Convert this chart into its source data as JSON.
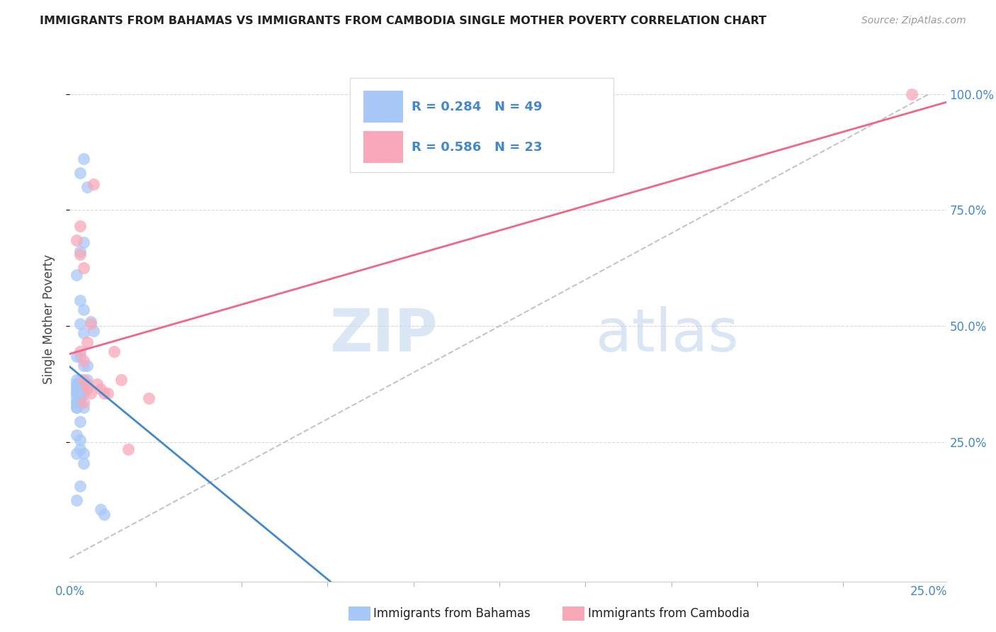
{
  "title": "IMMIGRANTS FROM BAHAMAS VS IMMIGRANTS FROM CAMBODIA SINGLE MOTHER POVERTY CORRELATION CHART",
  "source": "Source: ZipAtlas.com",
  "ylabel": "Single Mother Poverty",
  "x_tick_labels_bottom": [
    "0.0%",
    "25.0%"
  ],
  "x_tick_positions_bottom": [
    0.0,
    0.25
  ],
  "y_tick_labels": [
    "25.0%",
    "50.0%",
    "75.0%",
    "100.0%"
  ],
  "y_tick_positions": [
    0.25,
    0.5,
    0.75,
    1.0
  ],
  "xlim": [
    0.0,
    0.255
  ],
  "ylim": [
    -0.05,
    1.08
  ],
  "legend_label1": "Immigrants from Bahamas",
  "legend_label2": "Immigrants from Cambodia",
  "R1": 0.284,
  "N1": 49,
  "R2": 0.586,
  "N2": 23,
  "color1": "#a8c8f8",
  "color2": "#f8a8b8",
  "trendline1_color": "#4488cc",
  "trendline2_color": "#ee6688",
  "diagonal_color": "#bbbbbb",
  "watermark_zip": "ZIP",
  "watermark_atlas": "atlas",
  "bahamas_x": [
    0.002,
    0.004,
    0.003,
    0.002,
    0.003,
    0.005,
    0.004,
    0.006,
    0.007,
    0.005,
    0.004,
    0.003,
    0.002,
    0.003,
    0.004,
    0.002,
    0.002,
    0.003,
    0.002,
    0.003,
    0.002,
    0.002,
    0.004,
    0.003,
    0.005,
    0.004,
    0.003,
    0.002,
    0.003,
    0.004,
    0.002,
    0.003,
    0.004,
    0.003,
    0.002,
    0.009,
    0.01,
    0.004,
    0.002,
    0.003,
    0.002,
    0.002,
    0.003,
    0.004,
    0.003,
    0.002,
    0.002,
    0.002,
    0.002
  ],
  "bahamas_y": [
    0.335,
    0.86,
    0.83,
    0.61,
    0.66,
    0.8,
    0.68,
    0.51,
    0.49,
    0.385,
    0.355,
    0.385,
    0.385,
    0.365,
    0.365,
    0.365,
    0.345,
    0.345,
    0.335,
    0.335,
    0.325,
    0.325,
    0.325,
    0.345,
    0.415,
    0.415,
    0.295,
    0.265,
    0.255,
    0.225,
    0.225,
    0.235,
    0.205,
    0.155,
    0.125,
    0.105,
    0.095,
    0.485,
    0.435,
    0.435,
    0.375,
    0.375,
    0.555,
    0.535,
    0.505,
    0.365,
    0.355,
    0.355,
    0.355
  ],
  "cambodia_x": [
    0.002,
    0.003,
    0.003,
    0.004,
    0.005,
    0.003,
    0.004,
    0.004,
    0.005,
    0.006,
    0.004,
    0.005,
    0.007,
    0.006,
    0.008,
    0.009,
    0.01,
    0.011,
    0.013,
    0.015,
    0.017,
    0.245,
    0.023
  ],
  "cambodia_y": [
    0.685,
    0.715,
    0.655,
    0.625,
    0.465,
    0.445,
    0.425,
    0.385,
    0.375,
    0.355,
    0.335,
    0.365,
    0.805,
    0.505,
    0.375,
    0.365,
    0.355,
    0.355,
    0.445,
    0.385,
    0.235,
    1.0,
    0.345
  ]
}
